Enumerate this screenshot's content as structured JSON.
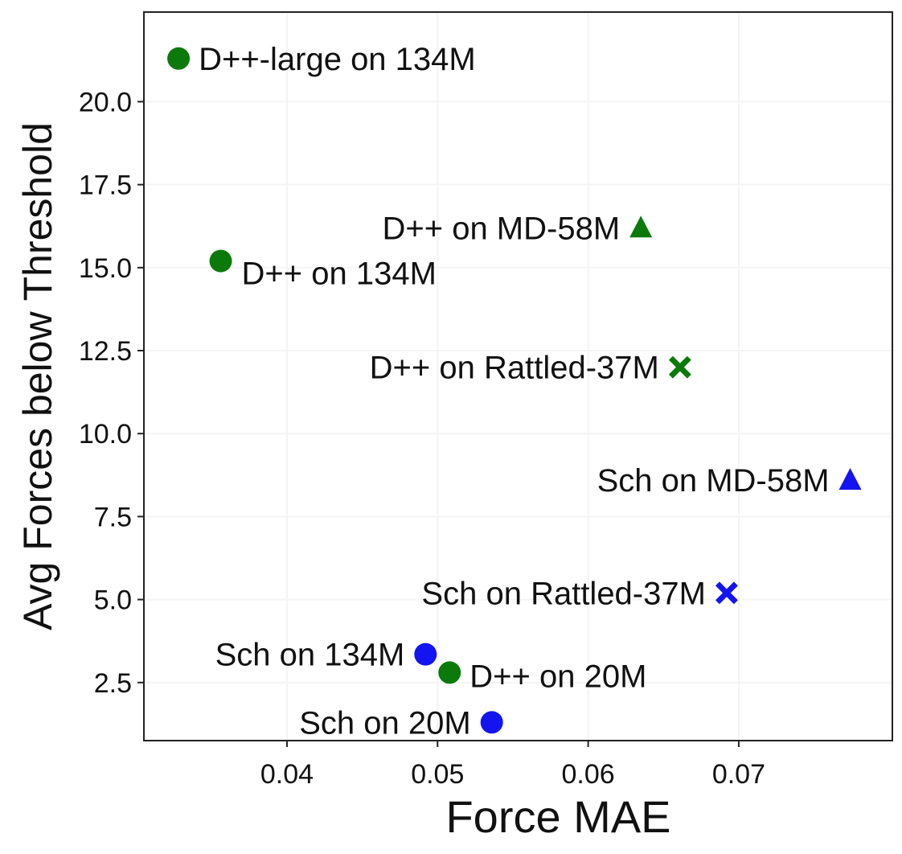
{
  "chart_data": {
    "type": "scatter",
    "title": "",
    "xlabel": "Force MAE",
    "ylabel": "Avg Forces below Threshold",
    "xlim": [
      0.0305,
      0.0802
    ],
    "ylim": [
      0.75,
      22.7
    ],
    "xticks": [
      0.04,
      0.05,
      0.06,
      0.07
    ],
    "xtick_labels": [
      "0.04",
      "0.05",
      "0.06",
      "0.07"
    ],
    "yticks": [
      2.5,
      5.0,
      7.5,
      10.0,
      12.5,
      15.0,
      17.5,
      20.0
    ],
    "ytick_labels": [
      "2.5",
      "5.0",
      "7.5",
      "10.0",
      "12.5",
      "15.0",
      "17.5",
      "20.0"
    ],
    "grid": true,
    "colors": {
      "dimenet": "#0b7a0b",
      "schnet": "#1414f0"
    },
    "points": [
      {
        "label": "D++-large on 134M",
        "x": 0.0328,
        "y": 21.3,
        "marker": "circle",
        "color": "#0b7a0b",
        "label_side": "right"
      },
      {
        "label": "D++ on 134M",
        "x": 0.0356,
        "y": 15.2,
        "marker": "circle",
        "color": "#0b7a0b",
        "label_side": "right-below"
      },
      {
        "label": "D++ on MD-58M",
        "x": 0.0635,
        "y": 16.2,
        "marker": "triangle",
        "color": "#0b7a0b",
        "label_side": "left"
      },
      {
        "label": "D++ on Rattled-37M",
        "x": 0.0661,
        "y": 12.0,
        "marker": "x",
        "color": "#0b7a0b",
        "label_side": "left"
      },
      {
        "label": "Sch on MD-58M",
        "x": 0.0774,
        "y": 8.6,
        "marker": "triangle",
        "color": "#1414f0",
        "label_side": "left"
      },
      {
        "label": "Sch on Rattled-37M",
        "x": 0.0692,
        "y": 5.2,
        "marker": "x",
        "color": "#1414f0",
        "label_side": "left"
      },
      {
        "label": "Sch on 134M",
        "x": 0.0492,
        "y": 3.35,
        "marker": "circle",
        "color": "#1414f0",
        "label_side": "left"
      },
      {
        "label": "D++ on 20M",
        "x": 0.0508,
        "y": 2.8,
        "marker": "circle",
        "color": "#0b7a0b",
        "label_side": "right"
      },
      {
        "label": "Sch on 20M",
        "x": 0.0536,
        "y": 1.3,
        "marker": "circle",
        "color": "#1414f0",
        "label_side": "left"
      }
    ]
  }
}
